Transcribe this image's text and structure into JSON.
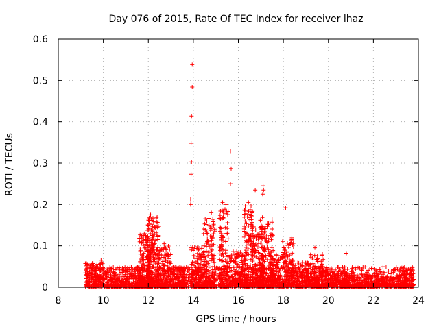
{
  "chart_data": {
    "type": "scatter",
    "title": "Day 076 of 2015, Rate Of TEC Index for receiver lhaz",
    "xlabel": "GPS time / hours",
    "ylabel": "ROTI / TECUs",
    "xlim": [
      8,
      24
    ],
    "ylim": [
      0,
      0.6
    ],
    "x_ticks": [
      8,
      10,
      12,
      14,
      16,
      18,
      20,
      22,
      24
    ],
    "y_ticks": [
      0,
      0.1,
      0.2,
      0.3,
      0.4,
      0.5,
      0.6
    ],
    "x_tick_labels": [
      "8",
      "10",
      "12",
      "14",
      "16",
      "18",
      "20",
      "22",
      "24"
    ],
    "y_tick_labels": [
      "0",
      "0.1",
      "0.2",
      "0.3",
      "0.4",
      "0.5",
      "0.6"
    ],
    "grid": true,
    "marker": "+",
    "color": "#ff0000",
    "x_range_of_observations": [
      9.2,
      23.8
    ],
    "baseline_band": [
      0.0,
      0.05
    ],
    "notable_points": [
      {
        "x": 13.95,
        "y": 0.538
      },
      {
        "x": 13.95,
        "y": 0.484
      },
      {
        "x": 13.92,
        "y": 0.414
      },
      {
        "x": 13.9,
        "y": 0.348
      },
      {
        "x": 13.92,
        "y": 0.303
      },
      {
        "x": 13.9,
        "y": 0.273
      },
      {
        "x": 13.88,
        "y": 0.213
      },
      {
        "x": 13.88,
        "y": 0.2
      },
      {
        "x": 15.65,
        "y": 0.329
      },
      {
        "x": 15.68,
        "y": 0.287
      },
      {
        "x": 15.65,
        "y": 0.25
      },
      {
        "x": 16.75,
        "y": 0.235
      },
      {
        "x": 17.1,
        "y": 0.245
      },
      {
        "x": 17.12,
        "y": 0.235
      },
      {
        "x": 17.08,
        "y": 0.225
      },
      {
        "x": 18.1,
        "y": 0.192
      },
      {
        "x": 20.8,
        "y": 0.082
      },
      {
        "x": 15.3,
        "y": 0.205
      },
      {
        "x": 15.45,
        "y": 0.2
      },
      {
        "x": 16.45,
        "y": 0.205
      },
      {
        "x": 12.1,
        "y": 0.175
      },
      {
        "x": 12.0,
        "y": 0.15
      },
      {
        "x": 11.8,
        "y": 0.125
      },
      {
        "x": 14.8,
        "y": 0.18
      },
      {
        "x": 14.6,
        "y": 0.16
      },
      {
        "x": 16.4,
        "y": 0.17
      },
      {
        "x": 17.5,
        "y": 0.165
      },
      {
        "x": 19.4,
        "y": 0.095
      },
      {
        "x": 12.7,
        "y": 0.105
      },
      {
        "x": 9.9,
        "y": 0.065
      }
    ],
    "clusters": [
      {
        "x_center": 9.6,
        "x_spread": 0.45,
        "y_max": 0.06,
        "count": 160
      },
      {
        "x_center": 10.9,
        "x_spread": 0.8,
        "y_max": 0.05,
        "count": 180
      },
      {
        "x_center": 11.9,
        "x_spread": 0.3,
        "y_max": 0.13,
        "count": 230
      },
      {
        "x_center": 12.2,
        "x_spread": 0.25,
        "y_max": 0.17,
        "count": 180
      },
      {
        "x_center": 12.7,
        "x_spread": 0.3,
        "y_max": 0.1,
        "count": 160
      },
      {
        "x_center": 13.4,
        "x_spread": 0.35,
        "y_max": 0.05,
        "count": 110
      },
      {
        "x_center": 14.2,
        "x_spread": 0.3,
        "y_max": 0.1,
        "count": 150
      },
      {
        "x_center": 14.7,
        "x_spread": 0.25,
        "y_max": 0.17,
        "count": 150
      },
      {
        "x_center": 15.35,
        "x_spread": 0.2,
        "y_max": 0.19,
        "count": 150
      },
      {
        "x_center": 15.9,
        "x_spread": 0.3,
        "y_max": 0.09,
        "count": 120
      },
      {
        "x_center": 16.45,
        "x_spread": 0.2,
        "y_max": 0.2,
        "count": 170
      },
      {
        "x_center": 16.85,
        "x_spread": 0.25,
        "y_max": 0.15,
        "count": 170
      },
      {
        "x_center": 17.25,
        "x_spread": 0.3,
        "y_max": 0.17,
        "count": 190
      },
      {
        "x_center": 17.7,
        "x_spread": 0.3,
        "y_max": 0.08,
        "count": 130
      },
      {
        "x_center": 18.2,
        "x_spread": 0.25,
        "y_max": 0.12,
        "count": 130
      },
      {
        "x_center": 18.8,
        "x_spread": 0.45,
        "y_max": 0.06,
        "count": 150
      },
      {
        "x_center": 19.5,
        "x_spread": 0.3,
        "y_max": 0.08,
        "count": 120
      },
      {
        "x_center": 20.3,
        "x_spread": 0.6,
        "y_max": 0.035,
        "count": 150
      },
      {
        "x_center": 21.5,
        "x_spread": 0.8,
        "y_max": 0.03,
        "count": 160
      },
      {
        "x_center": 22.8,
        "x_spread": 0.7,
        "y_max": 0.025,
        "count": 150
      },
      {
        "x_center": 23.6,
        "x_spread": 0.25,
        "y_max": 0.045,
        "count": 70
      }
    ]
  }
}
